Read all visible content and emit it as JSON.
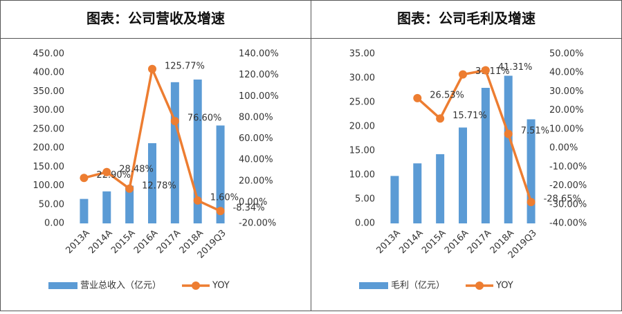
{
  "chart_data": [
    {
      "type": "bar",
      "title": "图表：公司营收及增速",
      "categories": [
        "2013A",
        "2014A",
        "2015A",
        "2016A",
        "2017A",
        "2018A",
        "2019Q3"
      ],
      "series": [
        {
          "name": "营业总收入（亿元）",
          "color": "#5b9bd5",
          "values": [
            65,
            85,
            100,
            213,
            375,
            382,
            260
          ]
        },
        {
          "name": "YOY",
          "color": "#ed7d31",
          "axis": "y2",
          "values": [
            22.9,
            28.48,
            12.78,
            125.77,
            76.6,
            1.6,
            -8.34
          ],
          "value_labels": [
            "22.90%",
            "28.48%",
            "12.78%",
            "125.77%",
            "76.60%",
            "1.60%",
            "-8.34%"
          ]
        }
      ],
      "ylim": [
        0,
        450
      ],
      "yticks": [
        {
          "value": 0,
          "label": "0.00"
        },
        {
          "value": 50,
          "label": "50.00"
        },
        {
          "value": 100,
          "label": "100.00"
        },
        {
          "value": 150,
          "label": "150.00"
        },
        {
          "value": 200,
          "label": "200.00"
        },
        {
          "value": 250,
          "label": "250.00"
        },
        {
          "value": 300,
          "label": "300.00"
        },
        {
          "value": 350,
          "label": "350.00"
        },
        {
          "value": 400,
          "label": "400.00"
        },
        {
          "value": 450,
          "label": "450.00"
        }
      ],
      "y2lim": [
        -20,
        140
      ],
      "y2ticks": [
        {
          "value": -20,
          "label": "-20.00%"
        },
        {
          "value": 0,
          "label": "0.00%"
        },
        {
          "value": 20,
          "label": "20.00%"
        },
        {
          "value": 40,
          "label": "40.00%"
        },
        {
          "value": 60,
          "label": "60.00%"
        },
        {
          "value": 80,
          "label": "80.00%"
        },
        {
          "value": 100,
          "label": "100.00%"
        },
        {
          "value": 120,
          "label": "120.00%"
        },
        {
          "value": 140,
          "label": "140.00%"
        }
      ]
    },
    {
      "type": "bar",
      "title": "图表：公司毛利及增速",
      "categories": [
        "2013A",
        "2014A",
        "2015A",
        "2016A",
        "2017A",
        "2018A",
        "2019Q3"
      ],
      "series": [
        {
          "name": "毛利（亿元）",
          "color": "#5b9bd5",
          "values": [
            9.8,
            12.4,
            14.3,
            19.8,
            28,
            30.5,
            21.5
          ]
        },
        {
          "name": "YOY",
          "color": "#ed7d31",
          "axis": "y2",
          "values": [
            null,
            26.53,
            15.71,
            39.11,
            41.31,
            7.51,
            -28.65
          ],
          "value_labels": [
            null,
            "26.53%",
            "15.71%",
            "39.11%",
            "41.31%",
            "7.51%",
            "-28.65%"
          ]
        }
      ],
      "ylim": [
        0,
        35
      ],
      "yticks": [
        {
          "value": 0,
          "label": "0.00"
        },
        {
          "value": 5,
          "label": "5.00"
        },
        {
          "value": 10,
          "label": "10.00"
        },
        {
          "value": 15,
          "label": "15.00"
        },
        {
          "value": 20,
          "label": "20.00"
        },
        {
          "value": 25,
          "label": "25.00"
        },
        {
          "value": 30,
          "label": "30.00"
        },
        {
          "value": 35,
          "label": "35.00"
        }
      ],
      "y2lim": [
        -40,
        50
      ],
      "y2ticks": [
        {
          "value": -40,
          "label": "-40.00%"
        },
        {
          "value": -30,
          "label": "-30.00%"
        },
        {
          "value": -20,
          "label": "-20.00%"
        },
        {
          "value": -10,
          "label": "-10.00%"
        },
        {
          "value": 0,
          "label": "0.00%"
        },
        {
          "value": 10,
          "label": "10.00%"
        },
        {
          "value": 20,
          "label": "20.00%"
        },
        {
          "value": 30,
          "label": "30.00%"
        },
        {
          "value": 40,
          "label": "40.00%"
        },
        {
          "value": 50,
          "label": "50.00%"
        }
      ]
    }
  ]
}
